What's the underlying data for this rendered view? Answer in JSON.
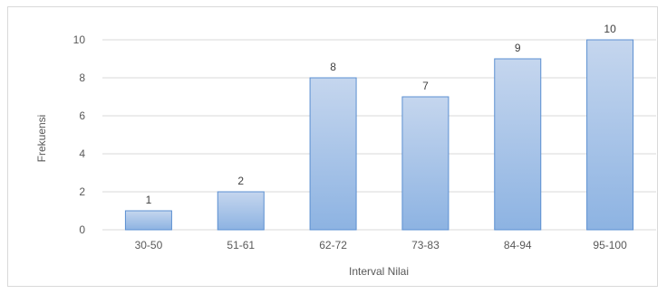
{
  "chart_data": {
    "type": "bar",
    "categories": [
      "30-50",
      "51-61",
      "62-72",
      "73-83",
      "84-94",
      "95-100"
    ],
    "values": [
      1,
      2,
      8,
      7,
      9,
      10
    ],
    "data_labels": [
      "1",
      "2",
      "8",
      "7",
      "9",
      "10"
    ],
    "title": "",
    "xlabel": "Interval Nilai",
    "ylabel": "Frekuensi",
    "ylim": [
      0,
      10
    ],
    "yticks": [
      0,
      2,
      4,
      6,
      8,
      10
    ],
    "grid": true,
    "legend": "none",
    "colors": {
      "bar_top": "#c5d6ee",
      "bar_bottom": "#8db3e2",
      "bar_border": "#5b8fd1",
      "gridline": "#d9d9d9"
    }
  }
}
